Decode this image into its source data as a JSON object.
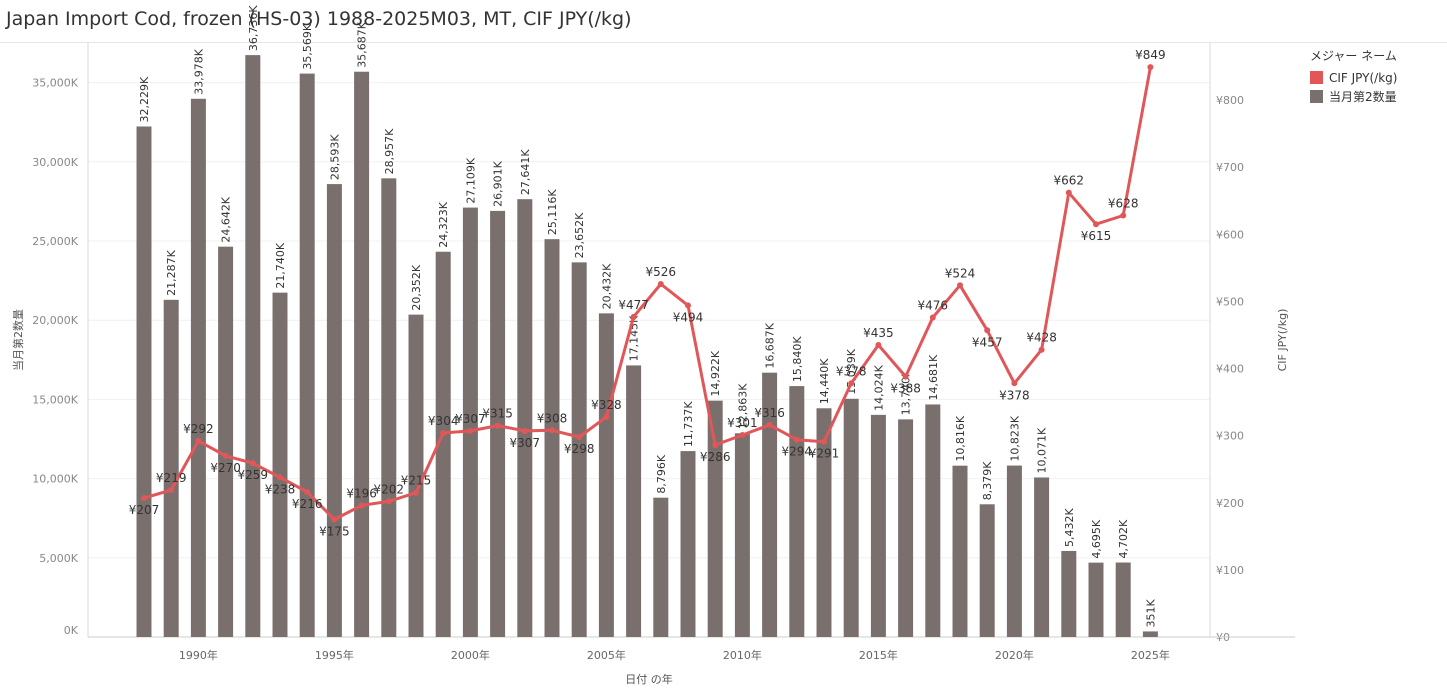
{
  "title": "Japan Import Cod, frozen (HS-03) 1988-2025M03, MT, CIF JPY(/kg)",
  "legend": {
    "title": "メジャー ネーム",
    "items": [
      {
        "label": "CIF JPY(/kg)",
        "color": "#e15759"
      },
      {
        "label": "当月第2数量",
        "color": "#79706e"
      }
    ]
  },
  "chart_data": {
    "type": "bar",
    "xlabel": "日付 の年",
    "x_ticks": [
      "1990年",
      "1995年",
      "2000年",
      "2005年",
      "2010年",
      "2015年",
      "2020年",
      "2025年"
    ],
    "x_tick_years": [
      1990,
      1995,
      2000,
      2005,
      2010,
      2015,
      2020,
      2025
    ],
    "years": [
      1988,
      1989,
      1990,
      1991,
      1992,
      1993,
      1994,
      1995,
      1996,
      1997,
      1998,
      1999,
      2000,
      2001,
      2002,
      2003,
      2004,
      2005,
      2006,
      2007,
      2008,
      2009,
      2010,
      2011,
      2012,
      2013,
      2014,
      2015,
      2016,
      2017,
      2018,
      2019,
      2020,
      2021,
      2022,
      2023,
      2024,
      2025
    ],
    "y_left": {
      "label": "当月第2数量",
      "range": [
        0,
        37500
      ],
      "ticks": [
        0,
        5000,
        10000,
        15000,
        20000,
        25000,
        30000,
        35000
      ],
      "tick_labels": [
        "0K",
        "5,000K",
        "10,000K",
        "15,000K",
        "20,000K",
        "25,000K",
        "30,000K",
        "35,000K"
      ]
    },
    "y_right": {
      "label": "CIF JPY(/kg)",
      "range": [
        0,
        885
      ],
      "ticks": [
        0,
        100,
        200,
        300,
        400,
        500,
        600,
        700,
        800
      ],
      "tick_labels": [
        "¥0",
        "¥100",
        "¥200",
        "¥300",
        "¥400",
        "¥500",
        "¥600",
        "¥700",
        "¥800"
      ]
    },
    "series": [
      {
        "name": "当月第2数量",
        "type": "bar",
        "color": "#79706e",
        "values": [
          32229,
          21287,
          33978,
          24642,
          36736,
          21740,
          35569,
          28593,
          35687,
          28957,
          20352,
          24323,
          27109,
          26901,
          27641,
          25116,
          23652,
          20432,
          17145,
          8796,
          11737,
          14922,
          12863,
          16687,
          15840,
          14440,
          15039,
          14024,
          13740,
          14681,
          10816,
          8379,
          10823,
          10071,
          5432,
          4695,
          4702,
          351
        ],
        "labels": [
          "32,229K",
          "21,287K",
          "33,978K",
          "24,642K",
          "36,736K",
          "21,740K",
          "35,569K",
          "28,593K",
          "35,687K",
          "28,957K",
          "20,352K",
          "24,323K",
          "27,109K",
          "26,901K",
          "27,641K",
          "25,116K",
          "23,652K",
          "20,432K",
          "17,145K",
          "8,796K",
          "11,737K",
          "14,922K",
          "12,863K",
          "16,687K",
          "15,840K",
          "14,440K",
          "15,039K",
          "14,024K",
          "13,740K",
          "14,681K",
          "10,816K",
          "8,379K",
          "10,823K",
          "10,071K",
          "5,432K",
          "4,695K",
          "4,702K",
          "351K"
        ]
      },
      {
        "name": "CIF JPY(/kg)",
        "type": "line",
        "color": "#e15759",
        "values": [
          207,
          219,
          292,
          270,
          259,
          238,
          216,
          175,
          196,
          202,
          215,
          304,
          307,
          315,
          307,
          308,
          298,
          328,
          477,
          526,
          494,
          286,
          301,
          316,
          294,
          291,
          378,
          435,
          388,
          476,
          524,
          457,
          378,
          428,
          662,
          615,
          628,
          849
        ],
        "labels": [
          "¥207",
          "¥219",
          "¥292",
          "¥270",
          "¥259",
          "¥238",
          "¥216",
          "¥175",
          "¥196",
          "¥202",
          "¥215",
          "¥304",
          "¥307",
          "¥315",
          "¥307",
          "¥308",
          "¥298",
          "¥328",
          "¥477",
          "¥526",
          "¥494",
          "¥286",
          "¥301",
          "¥316",
          "¥294",
          "¥291",
          "¥378",
          "¥435",
          "¥388",
          "¥476",
          "¥524",
          "¥457",
          "¥378",
          "¥428",
          "¥662",
          "¥615",
          "¥628",
          "¥849"
        ]
      }
    ]
  }
}
